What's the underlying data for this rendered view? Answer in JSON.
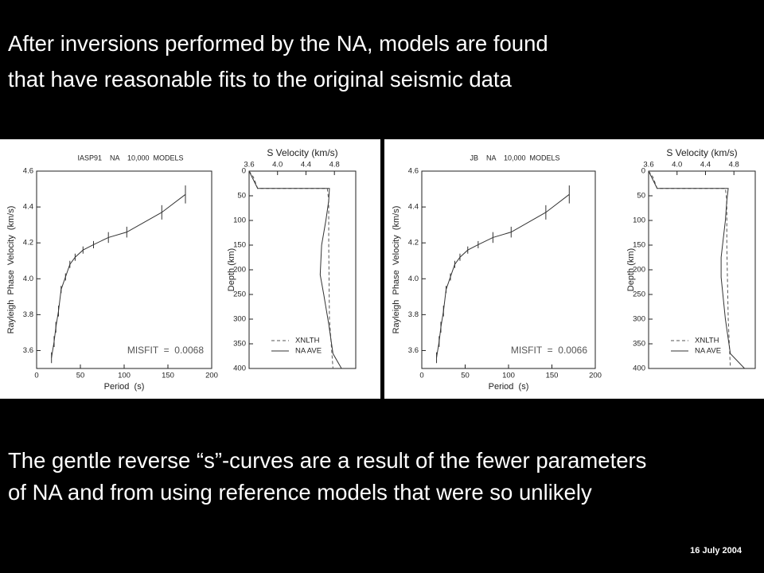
{
  "title_lines": [
    "After inversions performed by the NA, models are found",
    "that have reasonable fits to the original seismic data"
  ],
  "body_lines": [
    "The gentle reverse “s”-curves are a result of the fewer parameters",
    "of NA and from using reference models that were so unlikely"
  ],
  "date": "16 July 2004",
  "chart_data": [
    {
      "type": "line",
      "title": "IASP91    NA    10,000  MODELS",
      "x_label": "Period  (s)",
      "y_label": "Rayleigh  Phase  Velocity  (km/s)",
      "annotation": "MISFIT  =  0.0068",
      "xlim": [
        0,
        200
      ],
      "xticks": [
        0,
        50,
        100,
        150,
        200
      ],
      "ylim": [
        3.5,
        4.6
      ],
      "yticks": [
        3.6,
        3.8,
        {
          "value": 4,
          "label": "4.0"
        },
        4.2,
        4.4,
        4.6
      ],
      "series": [
        {
          "color": "#333333",
          "dash": false,
          "x": [
            17,
            20,
            22,
            25,
            28,
            33,
            38,
            44,
            53,
            65,
            82,
            103,
            143,
            170
          ],
          "values": [
            3.56,
            3.65,
            3.73,
            3.82,
            3.94,
            4.01,
            4.08,
            4.12,
            4.16,
            4.19,
            4.23,
            4.26,
            4.37,
            4.47
          ],
          "errors": [
            0.03,
            0.03,
            0.03,
            0.03,
            0.02,
            0.02,
            0.02,
            0.02,
            0.02,
            0.02,
            0.03,
            0.03,
            0.04,
            0.05
          ]
        }
      ]
    },
    {
      "type": "line",
      "x_label": "S Velocity (km/s)",
      "y_label": "Depth (km)",
      "x_axis_position": "top",
      "y_reversed": true,
      "legend": "lower left",
      "xlim": [
        3.6,
        5.1
      ],
      "xticks": [
        3.6,
        {
          "value": 4,
          "label": "4.0"
        },
        4.4,
        4.8
      ],
      "ylim": [
        0,
        400
      ],
      "yticks": [
        0,
        50,
        100,
        150,
        200,
        250,
        300,
        350,
        400
      ],
      "series": [
        {
          "name": "XNLTH",
          "color": "#555555",
          "dash": true,
          "x": [
            3.6,
            3.66,
            3.72,
            4.7,
            4.72,
            4.72,
            4.73,
            4.78
          ],
          "values": [
            0,
            12,
            35,
            35,
            60,
            150,
            300,
            400
          ]
        },
        {
          "name": "NA AVE",
          "color": "#333333",
          "dash": false,
          "x": [
            3.6,
            3.72,
            4.73,
            4.72,
            4.68,
            4.62,
            4.6,
            4.65,
            4.72,
            4.78,
            4.9
          ],
          "values": [
            0,
            35,
            35,
            60,
            100,
            150,
            210,
            250,
            310,
            370,
            400
          ]
        }
      ]
    },
    {
      "type": "line",
      "title": "JB    NA    10,000  MODELS",
      "x_label": "Period  (s)",
      "y_label": "Rayleigh  Phase  Velocity  (km/s)",
      "annotation": "MISFIT  =  0.0066",
      "xlim": [
        0,
        200
      ],
      "xticks": [
        0,
        50,
        100,
        150,
        200
      ],
      "ylim": [
        3.5,
        4.6
      ],
      "yticks": [
        3.6,
        3.8,
        {
          "value": 4,
          "label": "4.0"
        },
        4.2,
        4.4,
        4.6
      ],
      "series": [
        {
          "color": "#333333",
          "dash": false,
          "x": [
            17,
            20,
            22,
            25,
            28,
            33,
            38,
            44,
            53,
            65,
            82,
            103,
            143,
            170
          ],
          "values": [
            3.56,
            3.65,
            3.73,
            3.82,
            3.94,
            4.01,
            4.08,
            4.12,
            4.16,
            4.19,
            4.23,
            4.26,
            4.37,
            4.47
          ],
          "errors": [
            0.03,
            0.03,
            0.03,
            0.03,
            0.02,
            0.02,
            0.02,
            0.02,
            0.02,
            0.02,
            0.03,
            0.03,
            0.04,
            0.05
          ]
        }
      ]
    },
    {
      "type": "line",
      "x_label": "S Velocity (km/s)",
      "y_label": "Depth (km)",
      "x_axis_position": "top",
      "y_reversed": true,
      "legend": "lower left",
      "xlim": [
        3.6,
        5.1
      ],
      "xticks": [
        3.6,
        {
          "value": 4,
          "label": "4.0"
        },
        4.4,
        4.8
      ],
      "ylim": [
        0,
        400
      ],
      "yticks": [
        0,
        50,
        100,
        150,
        200,
        250,
        300,
        350,
        400
      ],
      "series": [
        {
          "name": "XNLTH",
          "color": "#555555",
          "dash": true,
          "x": [
            3.6,
            3.66,
            3.72,
            4.68,
            4.7,
            4.7,
            4.72,
            4.75
          ],
          "values": [
            0,
            12,
            35,
            35,
            60,
            150,
            300,
            400
          ]
        },
        {
          "name": "NA AVE",
          "color": "#333333",
          "dash": false,
          "x": [
            3.6,
            3.72,
            4.72,
            4.7,
            4.68,
            4.62,
            4.62,
            4.68,
            4.75,
            4.95
          ],
          "values": [
            0,
            35,
            35,
            60,
            100,
            175,
            215,
            300,
            370,
            400
          ]
        }
      ]
    }
  ]
}
